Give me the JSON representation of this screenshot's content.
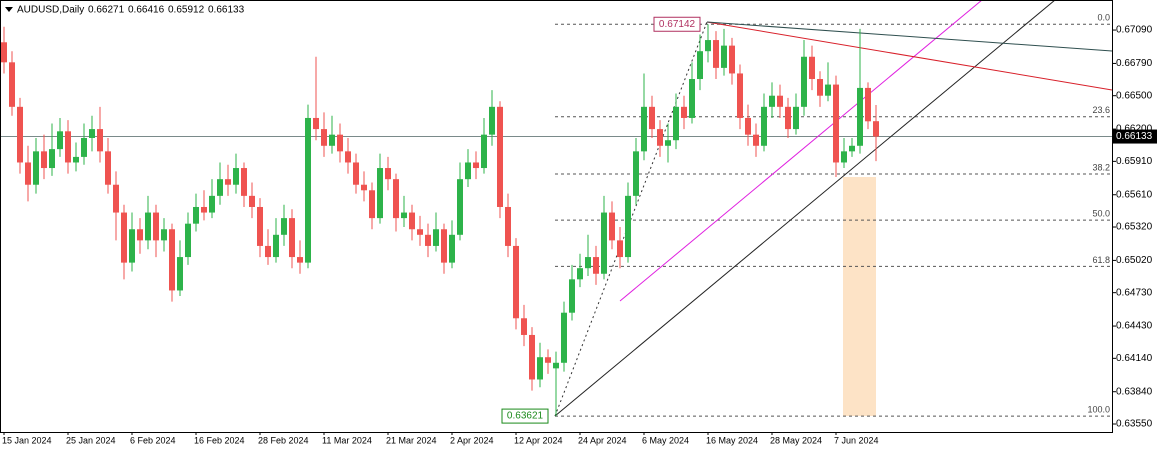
{
  "chart_data": {
    "type": "candlestick",
    "title": "AUDUSD,Daily",
    "up_color": "#2db34a",
    "down_color": "#ef5350",
    "ylim": [
      0.63478,
      0.6736
    ],
    "yticks": [
      {
        "value": 0.6709,
        "label": "0.67090"
      },
      {
        "value": 0.6679,
        "label": "0.66790"
      },
      {
        "value": 0.665,
        "label": "0.66500"
      },
      {
        "value": 0.662,
        "label": "0.66200"
      },
      {
        "value": 0.6591,
        "label": "0.65910"
      },
      {
        "value": 0.6561,
        "label": "0.65610"
      },
      {
        "value": 0.6532,
        "label": "0.65320"
      },
      {
        "value": 0.6502,
        "label": "0.65020"
      },
      {
        "value": 0.6473,
        "label": "0.64730"
      },
      {
        "value": 0.6443,
        "label": "0.64430"
      },
      {
        "value": 0.6414,
        "label": "0.64140"
      },
      {
        "value": 0.6384,
        "label": "0.63840"
      },
      {
        "value": 0.6355,
        "label": "0.63550"
      }
    ],
    "fibo": {
      "high": 0.67142,
      "low": 0.63621,
      "levels": [
        {
          "value": 0,
          "label": "0.0"
        },
        23.6,
        38.2,
        {
          "value": 50,
          "label": "50.0"
        },
        61.8,
        {
          "value": 100,
          "label": "100.0"
        }
      ]
    },
    "categories": [
      "15 Jan 2024",
      null,
      null,
      null,
      null,
      null,
      null,
      null,
      "25 Jan 2024",
      null,
      null,
      null,
      null,
      null,
      null,
      null,
      "6 Feb 2024",
      null,
      null,
      null,
      null,
      null,
      null,
      null,
      "16 Feb 2024",
      null,
      null,
      null,
      null,
      null,
      null,
      null,
      "28 Feb 2024",
      null,
      null,
      null,
      null,
      null,
      null,
      null,
      "11 Mar 2024",
      null,
      null,
      null,
      null,
      null,
      null,
      null,
      "21 Mar 2024",
      null,
      null,
      null,
      null,
      null,
      null,
      null,
      "2 Apr 2024",
      null,
      null,
      null,
      null,
      null,
      null,
      null,
      "12 Apr 2024",
      null,
      null,
      null,
      null,
      null,
      null,
      null,
      "24 Apr 2024",
      null,
      null,
      null,
      null,
      null,
      null,
      null,
      "6 May 2024",
      null,
      null,
      null,
      null,
      null,
      null,
      null,
      "16 May 2024",
      null,
      null,
      null,
      null,
      null,
      null,
      null,
      "28 May 2024",
      null,
      null,
      null,
      null,
      null,
      null,
      null,
      "7 Jun 2024",
      null,
      null,
      null,
      null,
      null
    ],
    "candles": [
      [
        0.6698,
        0.6712,
        0.667,
        0.668
      ],
      [
        0.668,
        0.669,
        0.6632,
        0.664
      ],
      [
        0.664,
        0.6648,
        0.658,
        0.659
      ],
      [
        0.659,
        0.6605,
        0.6555,
        0.657
      ],
      [
        0.657,
        0.6612,
        0.6562,
        0.66
      ],
      [
        0.66,
        0.6615,
        0.6575,
        0.6585
      ],
      [
        0.6585,
        0.6625,
        0.6578,
        0.6602
      ],
      [
        0.6602,
        0.663,
        0.6595,
        0.6618
      ],
      [
        0.6618,
        0.6628,
        0.658,
        0.659
      ],
      [
        0.659,
        0.6608,
        0.6582,
        0.6595
      ],
      [
        0.6595,
        0.6625,
        0.6588,
        0.6612
      ],
      [
        0.6612,
        0.6632,
        0.66,
        0.662
      ],
      [
        0.662,
        0.664,
        0.659,
        0.66
      ],
      [
        0.66,
        0.6612,
        0.6562,
        0.657
      ],
      [
        0.657,
        0.6582,
        0.652,
        0.6545
      ],
      [
        0.6545,
        0.6552,
        0.6485,
        0.65
      ],
      [
        0.65,
        0.6545,
        0.6492,
        0.653
      ],
      [
        0.653,
        0.654,
        0.6508,
        0.652
      ],
      [
        0.652,
        0.656,
        0.6512,
        0.6545
      ],
      [
        0.6545,
        0.6552,
        0.6505,
        0.652
      ],
      [
        0.652,
        0.654,
        0.651,
        0.653
      ],
      [
        0.653,
        0.6535,
        0.6465,
        0.6475
      ],
      [
        0.6475,
        0.652,
        0.647,
        0.6505
      ],
      [
        0.6505,
        0.6545,
        0.6498,
        0.6535
      ],
      [
        0.6535,
        0.6562,
        0.6528,
        0.655
      ],
      [
        0.655,
        0.6565,
        0.6538,
        0.6545
      ],
      [
        0.6545,
        0.6575,
        0.654,
        0.656
      ],
      [
        0.656,
        0.659,
        0.6552,
        0.6575
      ],
      [
        0.6575,
        0.6588,
        0.656,
        0.657
      ],
      [
        0.657,
        0.6598,
        0.6562,
        0.6585
      ],
      [
        0.6585,
        0.659,
        0.655,
        0.656
      ],
      [
        0.656,
        0.6572,
        0.654,
        0.655
      ],
      [
        0.655,
        0.6558,
        0.6505,
        0.6515
      ],
      [
        0.6515,
        0.653,
        0.6498,
        0.6505
      ],
      [
        0.6505,
        0.654,
        0.65,
        0.6525
      ],
      [
        0.6525,
        0.6552,
        0.6515,
        0.654
      ],
      [
        0.654,
        0.6548,
        0.6495,
        0.6505
      ],
      [
        0.6505,
        0.652,
        0.649,
        0.65
      ],
      [
        0.65,
        0.6642,
        0.6495,
        0.663
      ],
      [
        0.663,
        0.6685,
        0.661,
        0.662
      ],
      [
        0.662,
        0.6635,
        0.6595,
        0.6605
      ],
      [
        0.6605,
        0.6632,
        0.6598,
        0.6615
      ],
      [
        0.6615,
        0.6625,
        0.659,
        0.66
      ],
      [
        0.66,
        0.6612,
        0.658,
        0.659
      ],
      [
        0.659,
        0.6598,
        0.6562,
        0.657
      ],
      [
        0.657,
        0.6582,
        0.6555,
        0.6565
      ],
      [
        0.6565,
        0.6572,
        0.653,
        0.654
      ],
      [
        0.654,
        0.6598,
        0.6535,
        0.6585
      ],
      [
        0.6585,
        0.6595,
        0.6565,
        0.6575
      ],
      [
        0.6575,
        0.658,
        0.6528,
        0.654
      ],
      [
        0.654,
        0.656,
        0.6532,
        0.6545
      ],
      [
        0.6545,
        0.6552,
        0.652,
        0.653
      ],
      [
        0.653,
        0.6542,
        0.6515,
        0.6525
      ],
      [
        0.6525,
        0.6535,
        0.6505,
        0.6515
      ],
      [
        0.6515,
        0.6545,
        0.651,
        0.653
      ],
      [
        0.653,
        0.6535,
        0.649,
        0.65
      ],
      [
        0.65,
        0.6538,
        0.6495,
        0.6525
      ],
      [
        0.6525,
        0.659,
        0.652,
        0.6575
      ],
      [
        0.6575,
        0.6602,
        0.6568,
        0.659
      ],
      [
        0.659,
        0.66,
        0.6575,
        0.6585
      ],
      [
        0.6585,
        0.663,
        0.658,
        0.6615
      ],
      [
        0.6615,
        0.6655,
        0.6605,
        0.664
      ],
      [
        0.664,
        0.6645,
        0.654,
        0.655
      ],
      [
        0.655,
        0.6562,
        0.6505,
        0.6515
      ],
      [
        0.6515,
        0.6522,
        0.644,
        0.645
      ],
      [
        0.645,
        0.6462,
        0.6425,
        0.6435
      ],
      [
        0.6435,
        0.6442,
        0.6385,
        0.6395
      ],
      [
        0.6395,
        0.6428,
        0.6388,
        0.6415
      ],
      [
        0.6415,
        0.6422,
        0.64,
        0.641
      ],
      [
        0.6405,
        0.642,
        0.63621,
        0.641
      ],
      [
        0.641,
        0.6465,
        0.6402,
        0.6455
      ],
      [
        0.6455,
        0.6498,
        0.6448,
        0.6485
      ],
      [
        0.6485,
        0.6508,
        0.6478,
        0.6495
      ],
      [
        0.6495,
        0.6525,
        0.6488,
        0.6505
      ],
      [
        0.6505,
        0.6515,
        0.648,
        0.649
      ],
      [
        0.649,
        0.656,
        0.6485,
        0.6545
      ],
      [
        0.6545,
        0.6555,
        0.6512,
        0.652
      ],
      [
        0.652,
        0.6532,
        0.6495,
        0.6505
      ],
      [
        0.6505,
        0.6572,
        0.65,
        0.656
      ],
      [
        0.656,
        0.6612,
        0.6552,
        0.66
      ],
      [
        0.66,
        0.667,
        0.6592,
        0.664
      ],
      [
        0.664,
        0.665,
        0.6612,
        0.662
      ],
      [
        0.662,
        0.6628,
        0.6595,
        0.6605
      ],
      [
        0.6605,
        0.6625,
        0.659,
        0.661
      ],
      [
        0.661,
        0.6652,
        0.6602,
        0.664
      ],
      [
        0.664,
        0.665,
        0.662,
        0.663
      ],
      [
        0.663,
        0.668,
        0.6625,
        0.6665
      ],
      [
        0.6665,
        0.6705,
        0.6655,
        0.669
      ],
      [
        0.669,
        0.67142,
        0.668,
        0.67
      ],
      [
        0.67,
        0.6708,
        0.6665,
        0.6675
      ],
      [
        0.6675,
        0.671,
        0.6668,
        0.6695
      ],
      [
        0.6695,
        0.6702,
        0.666,
        0.667
      ],
      [
        0.667,
        0.6678,
        0.662,
        0.663
      ],
      [
        0.663,
        0.6642,
        0.6605,
        0.6615
      ],
      [
        0.6615,
        0.6625,
        0.6595,
        0.6605
      ],
      [
        0.6605,
        0.6652,
        0.66,
        0.664
      ],
      [
        0.664,
        0.6662,
        0.663,
        0.665
      ],
      [
        0.665,
        0.666,
        0.663,
        0.664
      ],
      [
        0.664,
        0.6648,
        0.6612,
        0.662
      ],
      [
        0.662,
        0.6652,
        0.6615,
        0.664
      ],
      [
        0.664,
        0.67,
        0.6632,
        0.6685
      ],
      [
        0.6685,
        0.6695,
        0.6655,
        0.6665
      ],
      [
        0.6665,
        0.6672,
        0.664,
        0.665
      ],
      [
        0.665,
        0.668,
        0.6645,
        0.666
      ],
      [
        0.666,
        0.6668,
        0.6577,
        0.659
      ],
      [
        0.659,
        0.6612,
        0.6585,
        0.66
      ],
      [
        0.66,
        0.6612,
        0.6595,
        0.6605
      ],
      [
        0.6605,
        0.671,
        0.6598,
        0.6657
      ],
      [
        0.6657,
        0.6662,
        0.662,
        0.6627
      ],
      [
        0.66271,
        0.66416,
        0.65912,
        0.66133
      ]
    ]
  }
}
